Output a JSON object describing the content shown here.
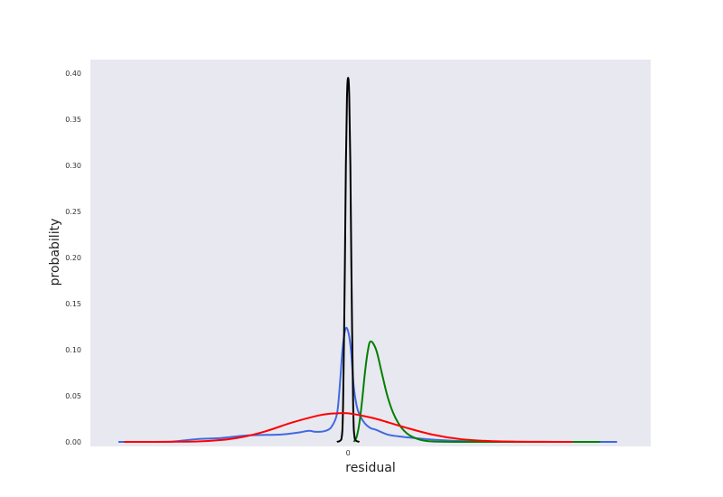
{
  "chart_data": {
    "type": "line",
    "title": "",
    "xlabel": "residual",
    "ylabel": "probability",
    "ylim": [
      0,
      0.41
    ],
    "xlim": [
      -46,
      54
    ],
    "grid": false,
    "background": "#e8e8f0",
    "x_ticks": [
      {
        "value": 0,
        "label": "0"
      }
    ],
    "y_ticks": [
      {
        "value": 0.0,
        "label": "0.00"
      },
      {
        "value": 0.05,
        "label": "0.05"
      },
      {
        "value": 0.1,
        "label": "0.10"
      },
      {
        "value": 0.15,
        "label": "0.15"
      },
      {
        "value": 0.2,
        "label": "0.20"
      },
      {
        "value": 0.25,
        "label": "0.25"
      },
      {
        "value": 0.3,
        "label": "0.30"
      },
      {
        "value": 0.35,
        "label": "0.35"
      },
      {
        "value": 0.4,
        "label": "0.40"
      }
    ],
    "series": [
      {
        "color": "#4169e1",
        "x": [
          -41,
          -35,
          -32,
          -27,
          -23,
          -18,
          -12,
          -9,
          -7,
          -6,
          -5,
          -4,
          -3,
          -2,
          -1.5,
          -1,
          -0.5,
          0,
          0.5,
          1,
          1.5,
          2,
          3,
          4,
          5,
          7,
          9,
          14,
          20,
          30,
          40,
          48
        ],
        "y": [
          0.0,
          0.0,
          0.0,
          0.003,
          0.004,
          0.007,
          0.008,
          0.01,
          0.012,
          0.011,
          0.011,
          0.012,
          0.016,
          0.03,
          0.06,
          0.1,
          0.122,
          0.12,
          0.1,
          0.06,
          0.04,
          0.03,
          0.02,
          0.015,
          0.013,
          0.008,
          0.006,
          0.003,
          0.001,
          0.0,
          0.0,
          0.0
        ]
      },
      {
        "color": "#008000",
        "x": [
          1,
          1.5,
          2,
          2.5,
          3,
          3.5,
          4,
          5,
          6,
          7,
          8,
          9,
          10,
          11,
          13,
          15,
          20,
          26,
          35,
          45
        ],
        "y": [
          0.0,
          0.005,
          0.02,
          0.045,
          0.075,
          0.098,
          0.109,
          0.1,
          0.075,
          0.05,
          0.032,
          0.02,
          0.012,
          0.007,
          0.002,
          0.0005,
          0.0,
          0.0,
          0.0,
          0.0
        ]
      },
      {
        "color": "#000000",
        "x": [
          -2,
          -1.2,
          -0.9,
          -0.6,
          -0.4,
          -0.2,
          0,
          0.2,
          0.4,
          0.6,
          0.9,
          1.2,
          2
        ],
        "y": [
          0.0,
          0.003,
          0.04,
          0.18,
          0.3,
          0.375,
          0.395,
          0.375,
          0.3,
          0.18,
          0.04,
          0.003,
          0.0
        ]
      },
      {
        "color": "#ff0000",
        "x": [
          -40,
          -30,
          -25,
          -20,
          -15,
          -10,
          -5,
          -2,
          0,
          2,
          5,
          10,
          15,
          20,
          25,
          30,
          35,
          40
        ],
        "y": [
          0.0,
          0.0002,
          0.001,
          0.004,
          0.011,
          0.021,
          0.029,
          0.031,
          0.031,
          0.029,
          0.025,
          0.016,
          0.008,
          0.003,
          0.001,
          0.0003,
          0.0001,
          0.0
        ]
      }
    ]
  }
}
